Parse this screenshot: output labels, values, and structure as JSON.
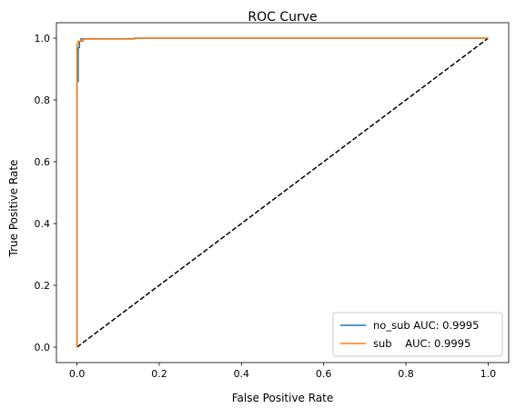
{
  "chart_data": {
    "type": "line",
    "title": "ROC Curve",
    "xlabel": "False Positive Rate",
    "ylabel": "True Positive Rate",
    "xlim": [
      -0.05,
      1.05
    ],
    "ylim": [
      -0.05,
      1.05
    ],
    "xticks": [
      0.0,
      0.2,
      0.4,
      0.6,
      0.8,
      1.0
    ],
    "yticks": [
      0.0,
      0.2,
      0.4,
      0.6,
      0.8,
      1.0
    ],
    "xtick_labels": [
      "0.0",
      "0.2",
      "0.4",
      "0.6",
      "0.8",
      "1.0"
    ],
    "ytick_labels": [
      "0.0",
      "0.2",
      "0.4",
      "0.6",
      "0.8",
      "1.0"
    ],
    "grid": false,
    "legend_position": "lower-right",
    "series": [
      {
        "name": "no_sub AUC: 0.9995",
        "color": "#1f77b4",
        "x": [
          0.0,
          0.0,
          0.003,
          0.003,
          0.006,
          0.006,
          0.01,
          0.01,
          0.14,
          0.14,
          1.0
        ],
        "y": [
          0.0,
          0.86,
          0.86,
          0.97,
          0.97,
          0.99,
          0.99,
          0.998,
          0.998,
          1.0,
          1.0
        ]
      },
      {
        "name": "sub    AUC: 0.9995",
        "color": "#ff7f0e",
        "x": [
          0.0,
          0.0,
          0.003,
          0.003,
          0.015,
          0.015,
          0.14,
          0.14,
          1.0
        ],
        "y": [
          0.0,
          0.98,
          0.98,
          0.99,
          0.99,
          0.997,
          0.997,
          1.0,
          1.0
        ]
      }
    ],
    "reference_line": {
      "style": "dashed",
      "color": "#000000",
      "x": [
        0.0,
        1.0
      ],
      "y": [
        0.0,
        1.0
      ]
    }
  }
}
